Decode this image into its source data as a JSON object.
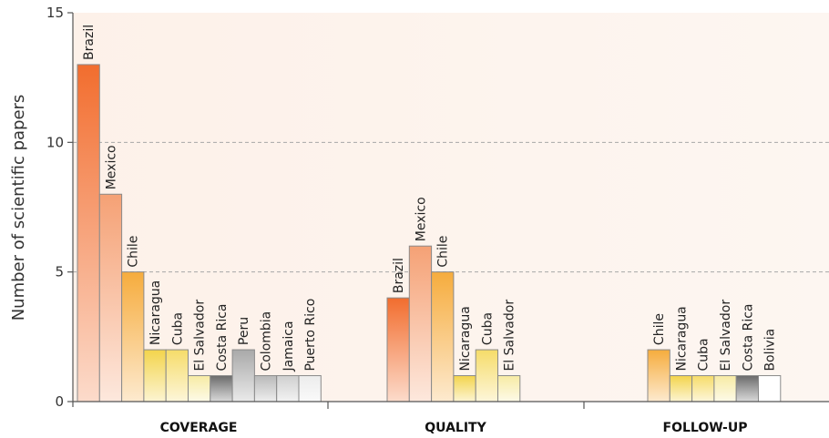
{
  "chart_data": {
    "type": "bar",
    "ylabel": "Number of scientific papers",
    "ylim": [
      0,
      15
    ],
    "yticks": [
      0,
      5,
      10,
      15
    ],
    "grid": "dashed horizontal at 5 and 10",
    "groups": [
      {
        "label": "COVERAGE",
        "bars": [
          {
            "country": "Brazil",
            "value": 13,
            "color": "#f26d2e"
          },
          {
            "country": "Mexico",
            "value": 8,
            "color": "#f5a175"
          },
          {
            "country": "Chile",
            "value": 5,
            "color": "#f6ac3d"
          },
          {
            "country": "Nicaragua",
            "value": 2,
            "color": "#f3d44c"
          },
          {
            "country": "Cuba",
            "value": 2,
            "color": "#f6dc69"
          },
          {
            "country": "El Salvador",
            "value": 1,
            "color": "#f7eba4"
          },
          {
            "country": "Costa Rica",
            "value": 1,
            "color": "#6b6b6b"
          },
          {
            "country": "Peru",
            "value": 2,
            "color": "#a9a9a9"
          },
          {
            "country": "Colombia",
            "value": 1,
            "color": "#b9b9b9"
          },
          {
            "country": "Jamaica",
            "value": 1,
            "color": "#cfcfcf"
          },
          {
            "country": "Puerto Rico",
            "value": 1,
            "color": "#ececec"
          }
        ]
      },
      {
        "label": "QUALITY",
        "bars": [
          {
            "country": "Brazil",
            "value": 4,
            "color": "#f26d2e"
          },
          {
            "country": "Mexico",
            "value": 6,
            "color": "#f5a175"
          },
          {
            "country": "Chile",
            "value": 5,
            "color": "#f6ac3d"
          },
          {
            "country": "Nicaragua",
            "value": 1,
            "color": "#f3d44c"
          },
          {
            "country": "Cuba",
            "value": 2,
            "color": "#f6dc69"
          },
          {
            "country": "El Salvador",
            "value": 1,
            "color": "#f7eba4"
          }
        ]
      },
      {
        "label": "FOLLOW-UP",
        "bars": [
          {
            "country": "Chile",
            "value": 2,
            "color": "#f6ac3d"
          },
          {
            "country": "Nicaragua",
            "value": 1,
            "color": "#f3d44c"
          },
          {
            "country": "Cuba",
            "value": 1,
            "color": "#f6dc69"
          },
          {
            "country": "El Salvador",
            "value": 1,
            "color": "#f7eba4"
          },
          {
            "country": "Costa Rica",
            "value": 1,
            "color": "#6b6b6b"
          },
          {
            "country": "Bolivia",
            "value": 1,
            "color": "#ffffff"
          }
        ]
      }
    ]
  }
}
